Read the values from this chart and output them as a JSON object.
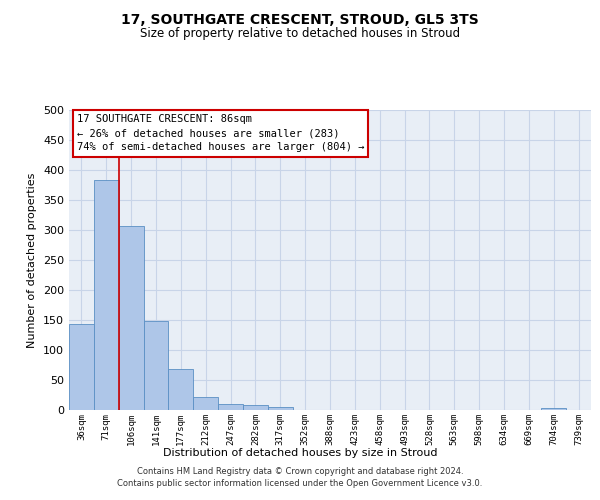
{
  "title1": "17, SOUTHGATE CRESCENT, STROUD, GL5 3TS",
  "title2": "Size of property relative to detached houses in Stroud",
  "xlabel": "Distribution of detached houses by size in Stroud",
  "ylabel": "Number of detached properties",
  "categories": [
    "36sqm",
    "71sqm",
    "106sqm",
    "141sqm",
    "177sqm",
    "212sqm",
    "247sqm",
    "282sqm",
    "317sqm",
    "352sqm",
    "388sqm",
    "423sqm",
    "458sqm",
    "493sqm",
    "528sqm",
    "563sqm",
    "598sqm",
    "634sqm",
    "669sqm",
    "704sqm",
    "739sqm"
  ],
  "bar_values": [
    143,
    383,
    307,
    148,
    69,
    22,
    10,
    8,
    5,
    0,
    0,
    0,
    0,
    0,
    0,
    0,
    0,
    0,
    0,
    4,
    0
  ],
  "bar_color": "#aec6e8",
  "bar_edge_color": "#5a8fc4",
  "vline_x": 1.5,
  "annotation_line1": "17 SOUTHGATE CRESCENT: 86sqm",
  "annotation_line2": "← 26% of detached houses are smaller (283)",
  "annotation_line3": "74% of semi-detached houses are larger (804) →",
  "annotation_box_color": "#ffffff",
  "annotation_border_color": "#cc0000",
  "ylim": [
    0,
    500
  ],
  "yticks": [
    0,
    50,
    100,
    150,
    200,
    250,
    300,
    350,
    400,
    450,
    500
  ],
  "grid_color": "#c8d4e8",
  "background_color": "#e8eef6",
  "footer1": "Contains HM Land Registry data © Crown copyright and database right 2024.",
  "footer2": "Contains public sector information licensed under the Open Government Licence v3.0."
}
